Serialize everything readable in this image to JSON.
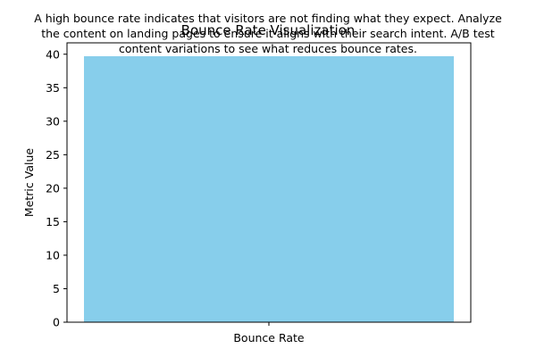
{
  "chart_data": {
    "type": "bar",
    "title": "Bounce Rate Visualization",
    "annotation": [
      "A high bounce rate indicates that visitors are not finding what they expect. Analyze",
      "the content on landing pages to ensure it aligns with their search intent. A/B test",
      "content variations to see what reduces bounce rates."
    ],
    "categories": [
      "Bounce Rate"
    ],
    "values": [
      39.7
    ],
    "xlabel": "",
    "ylabel": "Metric Value",
    "ylim": [
      0,
      41.7
    ],
    "yticks": [
      0,
      5,
      10,
      15,
      20,
      25,
      30,
      35,
      40
    ],
    "grid": false,
    "legend": "none",
    "bar_color": "#87CEEB"
  }
}
